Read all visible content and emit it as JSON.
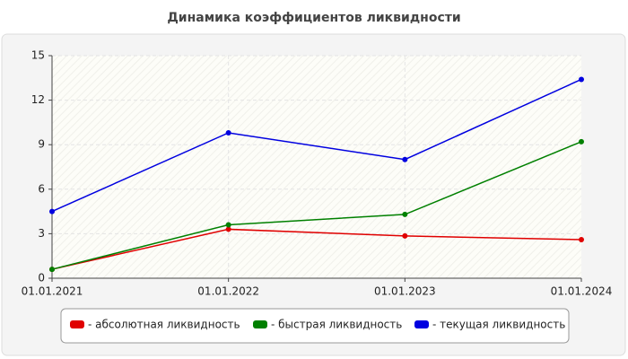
{
  "chart_data": {
    "type": "line",
    "title": "Динамика коэффициентов ликвидности",
    "categories": [
      "01.01.2021",
      "01.01.2022",
      "01.01.2023",
      "01.01.2024"
    ],
    "series": [
      {
        "name": "- абсолютная ликвидность",
        "color": "#e00000",
        "values": [
          0.6,
          3.3,
          2.85,
          2.6
        ]
      },
      {
        "name": "- быстрая ликвидность",
        "color": "#008000",
        "values": [
          0.6,
          3.6,
          4.3,
          9.2
        ]
      },
      {
        "name": "- текущая ликвидность",
        "color": "#0000e0",
        "values": [
          4.5,
          9.8,
          8.0,
          13.4
        ]
      }
    ],
    "ylim": [
      0,
      15
    ],
    "yticks": [
      0,
      3,
      6,
      9,
      12,
      15
    ],
    "grid": true
  }
}
